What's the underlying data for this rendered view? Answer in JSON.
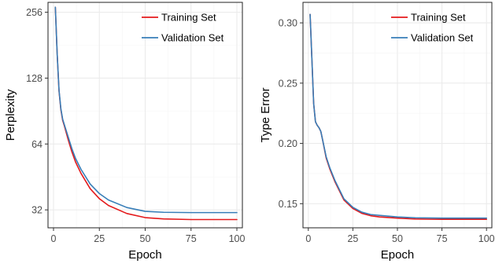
{
  "chart_data": [
    {
      "type": "line",
      "xlabel": "Epoch",
      "ylabel": "Perplexity",
      "y_scale": "log2",
      "xlim": [
        -3,
        103
      ],
      "ylim": [
        26.5,
        284
      ],
      "x_ticks": [
        0,
        25,
        50,
        75,
        100
      ],
      "y_ticks": [
        32,
        64,
        128,
        256
      ],
      "x_tick_labels": [
        "0",
        "25",
        "50",
        "75",
        "100"
      ],
      "y_tick_labels": [
        "32",
        "64",
        "128",
        "256"
      ],
      "grid": true,
      "legend_position": "top-right",
      "series": [
        {
          "name": "Training Set",
          "color": "#e41a1c",
          "x": [
            1,
            2,
            3,
            4,
            5,
            6,
            8,
            10,
            12,
            15,
            20,
            25,
            30,
            40,
            50,
            60,
            75,
            100
          ],
          "values": [
            270,
            165,
            112,
            92,
            82,
            77,
            67,
            59,
            53,
            47,
            40,
            36,
            33.5,
            30.8,
            29.5,
            29.1,
            28.9,
            28.9
          ]
        },
        {
          "name": "Validation Set",
          "color": "#377eb8",
          "x": [
            1,
            2,
            3,
            4,
            5,
            6,
            8,
            10,
            12,
            15,
            20,
            25,
            30,
            40,
            50,
            60,
            75,
            100
          ],
          "values": [
            270,
            165,
            113,
            93,
            83,
            78,
            69,
            61,
            55,
            49,
            42,
            38,
            35.5,
            32.8,
            31.5,
            31.2,
            31.1,
            31.1
          ]
        }
      ]
    },
    {
      "type": "line",
      "xlabel": "Epoch",
      "ylabel": "Type Error",
      "xlim": [
        -3,
        103
      ],
      "ylim": [
        0.13,
        0.317
      ],
      "x_ticks": [
        0,
        25,
        50,
        75,
        100
      ],
      "y_ticks": [
        0.15,
        0.2,
        0.25,
        0.3
      ],
      "x_tick_labels": [
        "0",
        "25",
        "50",
        "75",
        "100"
      ],
      "y_tick_labels": [
        "0.15",
        "0.20",
        "0.25",
        "0.30"
      ],
      "grid": true,
      "legend_position": "top-right",
      "series": [
        {
          "name": "Training Set",
          "color": "#e41a1c",
          "x": [
            1,
            2,
            3,
            4,
            5,
            6,
            7,
            8,
            10,
            12,
            15,
            20,
            25,
            30,
            35,
            40,
            50,
            60,
            75,
            100
          ],
          "values": [
            0.307,
            0.27,
            0.233,
            0.218,
            0.215,
            0.213,
            0.21,
            0.203,
            0.188,
            0.179,
            0.168,
            0.153,
            0.146,
            0.142,
            0.14,
            0.139,
            0.138,
            0.1373,
            0.137,
            0.137
          ]
        },
        {
          "name": "Validation Set",
          "color": "#377eb8",
          "x": [
            1,
            2,
            3,
            4,
            5,
            6,
            7,
            8,
            10,
            12,
            15,
            20,
            25,
            30,
            35,
            40,
            50,
            60,
            75,
            100
          ],
          "values": [
            0.307,
            0.27,
            0.233,
            0.218,
            0.215,
            0.213,
            0.21,
            0.203,
            0.189,
            0.18,
            0.169,
            0.154,
            0.147,
            0.143,
            0.141,
            0.1403,
            0.139,
            0.1383,
            0.138,
            0.138
          ]
        }
      ]
    }
  ]
}
